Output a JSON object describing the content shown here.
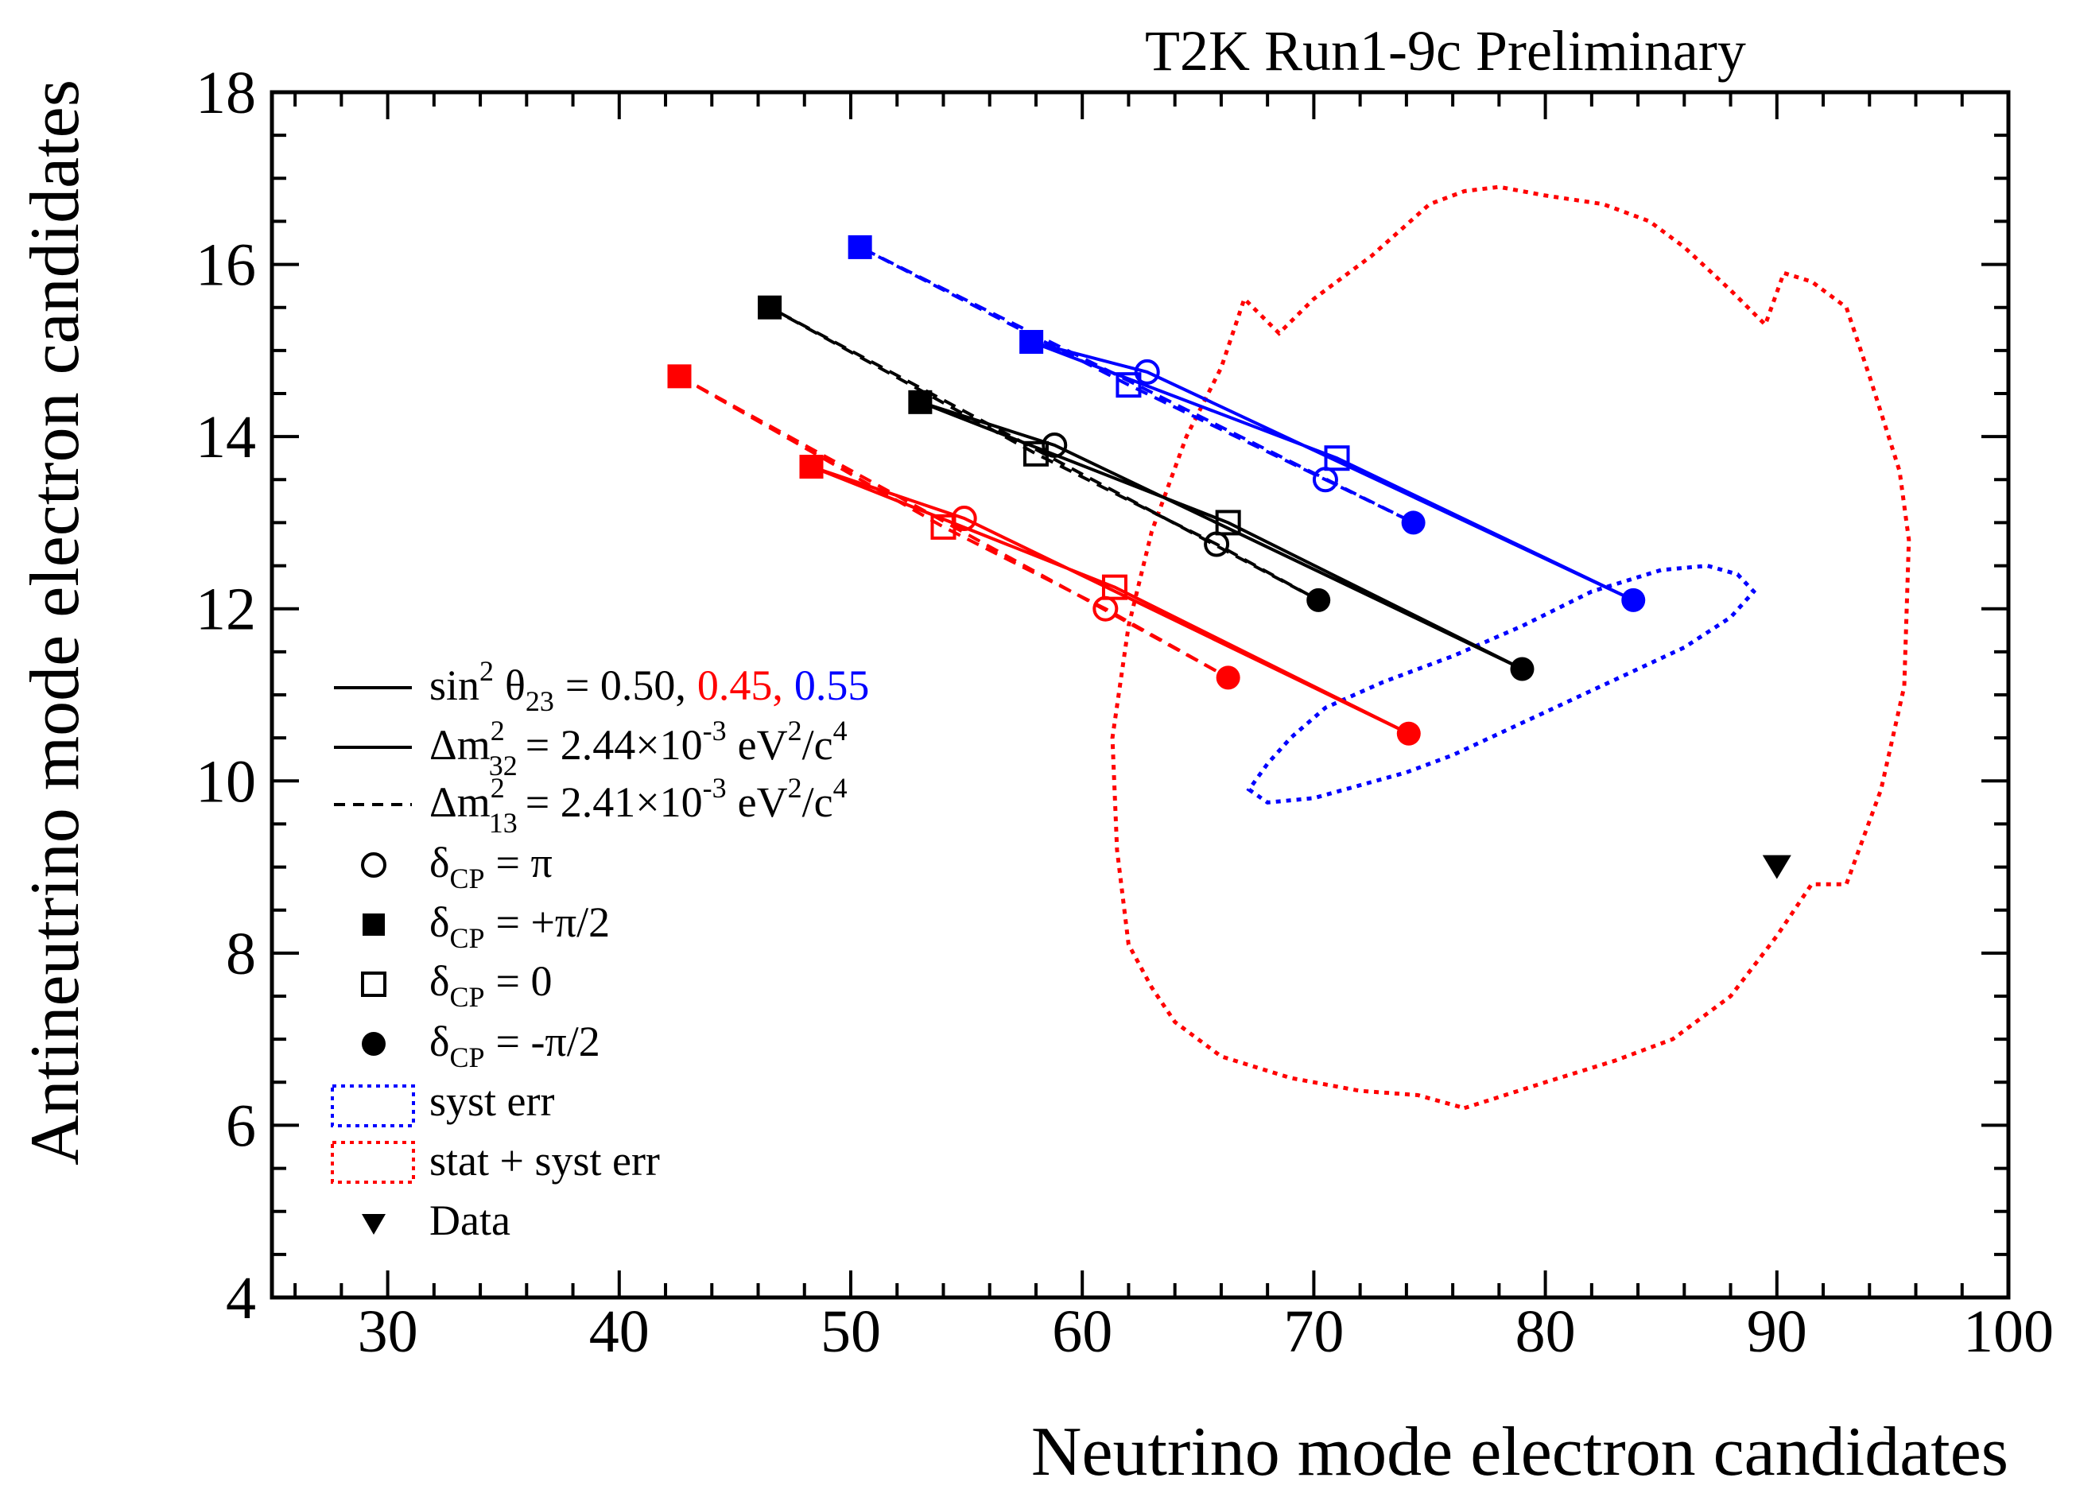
{
  "chart_data": {
    "type": "scatter",
    "header": "T2K Run1-9c Preliminary",
    "xlabel": "Neutrino mode electron candidates",
    "ylabel": "Antineutrino mode electron candidates",
    "xlim": [
      25,
      100
    ],
    "ylim": [
      4,
      18
    ],
    "xticks": [
      30,
      40,
      50,
      60,
      70,
      80,
      90,
      100
    ],
    "yticks": [
      4,
      6,
      8,
      10,
      12,
      14,
      16,
      18
    ],
    "colors": {
      "s050": "#000000",
      "s045": "#ff0000",
      "s055": "#0000ff",
      "syst": "#0000ff",
      "statsyst": "#ff0000",
      "data": "#000000"
    },
    "ellipses": [
      {
        "name": "syst err",
        "color": "#0000ff",
        "points": [
          [
            67.2,
            9.9
          ],
          [
            68,
            9.75
          ],
          [
            70,
            9.8
          ],
          [
            72,
            9.95
          ],
          [
            74,
            10.1
          ],
          [
            76,
            10.3
          ],
          [
            78,
            10.55
          ],
          [
            80,
            10.8
          ],
          [
            82,
            11.05
          ],
          [
            84,
            11.3
          ],
          [
            86,
            11.55
          ],
          [
            88,
            11.9
          ],
          [
            89,
            12.2
          ],
          [
            88.3,
            12.4
          ],
          [
            87,
            12.5
          ],
          [
            85,
            12.45
          ],
          [
            82,
            12.2
          ],
          [
            79,
            11.8
          ],
          [
            76,
            11.45
          ],
          [
            73,
            11.15
          ],
          [
            70.5,
            10.85
          ],
          [
            69,
            10.5
          ],
          [
            68,
            10.2
          ],
          [
            67.2,
            9.9
          ]
        ]
      },
      {
        "name": "stat + syst err",
        "color": "#ff0000",
        "points": [
          [
            76.5,
            6.2
          ],
          [
            80,
            6.5
          ],
          [
            83,
            6.75
          ],
          [
            85.5,
            7
          ],
          [
            88,
            7.5
          ],
          [
            90,
            8.2
          ],
          [
            91.5,
            8.8
          ],
          [
            93,
            8.8
          ],
          [
            94.5,
            9.9
          ],
          [
            95.5,
            11.1
          ],
          [
            95.7,
            12.8
          ],
          [
            95.3,
            13.6
          ],
          [
            94,
            14.7
          ],
          [
            93,
            15.5
          ],
          [
            91.5,
            15.8
          ],
          [
            90.3,
            15.9
          ],
          [
            89.5,
            15.3
          ],
          [
            88,
            15.7
          ],
          [
            86,
            16.2
          ],
          [
            84.5,
            16.5
          ],
          [
            82.5,
            16.7
          ],
          [
            80,
            16.8
          ],
          [
            78,
            16.9
          ],
          [
            76.5,
            16.85
          ],
          [
            75,
            16.7
          ],
          [
            72.5,
            16.1
          ],
          [
            70,
            15.6
          ],
          [
            68.5,
            15.2
          ],
          [
            67,
            15.6
          ],
          [
            66,
            14.8
          ],
          [
            64.5,
            14
          ],
          [
            63,
            12.9
          ],
          [
            62,
            11.8
          ],
          [
            61.3,
            10.5
          ],
          [
            61.5,
            9.2
          ],
          [
            62,
            8.1
          ],
          [
            63,
            7.6
          ],
          [
            64,
            7.2
          ],
          [
            66,
            6.8
          ],
          [
            69,
            6.55
          ],
          [
            72,
            6.4
          ],
          [
            74.5,
            6.35
          ],
          [
            76.5,
            6.2
          ]
        ]
      }
    ],
    "series": [
      {
        "name": "sin2 theta23 = 0.50, dm2_32 (normal)",
        "color": "#000000",
        "dash": false,
        "points": [
          [
            53,
            14.4
          ],
          [
            58.8,
            13.9
          ],
          [
            79,
            11.3
          ],
          [
            66.3,
            13.0
          ],
          [
            53,
            14.4
          ]
        ],
        "markers": [
          [
            53,
            14.4,
            "square-filled"
          ],
          [
            58.8,
            13.9,
            "circle-open"
          ],
          [
            66.3,
            13.0,
            "square-open"
          ],
          [
            79,
            11.3,
            "circle-filled"
          ]
        ]
      },
      {
        "name": "sin2 theta23 = 0.50, dm2_13 (inverted)",
        "color": "#000000",
        "dash": true,
        "points": [
          [
            46.5,
            15.5
          ],
          [
            58,
            13.8
          ],
          [
            65.8,
            12.75
          ],
          [
            70.2,
            12.1
          ],
          [
            46.5,
            15.5
          ]
        ],
        "markers": [
          [
            46.5,
            15.5,
            "square-filled"
          ],
          [
            58,
            13.8,
            "square-open"
          ],
          [
            65.8,
            12.75,
            "circle-open"
          ],
          [
            70.2,
            12.1,
            "circle-filled"
          ]
        ]
      },
      {
        "name": "sin2 theta23 = 0.45, dm2_32 (normal)",
        "color": "#ff0000",
        "dash": false,
        "points": [
          [
            48.3,
            13.65
          ],
          [
            54.9,
            13.05
          ],
          [
            74.1,
            10.55
          ],
          [
            61.4,
            12.25
          ],
          [
            48.3,
            13.65
          ]
        ],
        "markers": [
          [
            48.3,
            13.65,
            "square-filled"
          ],
          [
            54.9,
            13.05,
            "circle-open"
          ],
          [
            61.4,
            12.25,
            "square-open"
          ],
          [
            74.1,
            10.55,
            "circle-filled"
          ]
        ]
      },
      {
        "name": "sin2 theta23 = 0.45, dm2_13 (inverted)",
        "color": "#ff0000",
        "dash": true,
        "points": [
          [
            42.6,
            14.7
          ],
          [
            54,
            12.95
          ],
          [
            61,
            12.0
          ],
          [
            66.3,
            11.2
          ],
          [
            42.6,
            14.7
          ]
        ],
        "markers": [
          [
            42.6,
            14.7,
            "square-filled"
          ],
          [
            54,
            12.95,
            "square-open"
          ],
          [
            61,
            12.0,
            "circle-open"
          ],
          [
            66.3,
            11.2,
            "circle-filled"
          ]
        ]
      },
      {
        "name": "sin2 theta23 = 0.55, dm2_32 (normal)",
        "color": "#0000ff",
        "dash": false,
        "points": [
          [
            57.8,
            15.1
          ],
          [
            62.8,
            14.75
          ],
          [
            83.8,
            12.1
          ],
          [
            71,
            13.75
          ],
          [
            57.8,
            15.1
          ]
        ],
        "markers": [
          [
            57.8,
            15.1,
            "square-filled"
          ],
          [
            62.8,
            14.75,
            "circle-open"
          ],
          [
            71,
            13.75,
            "square-open"
          ],
          [
            83.8,
            12.1,
            "circle-filled"
          ]
        ]
      },
      {
        "name": "sin2 theta23 = 0.55, dm2_13 (inverted)",
        "color": "#0000ff",
        "dash": true,
        "points": [
          [
            50.4,
            16.2
          ],
          [
            62,
            14.6
          ],
          [
            70.5,
            13.5
          ],
          [
            74.3,
            13.0
          ],
          [
            50.4,
            16.2
          ]
        ],
        "markers": [
          [
            50.4,
            16.2,
            "square-filled"
          ],
          [
            62,
            14.6,
            "square-open"
          ],
          [
            70.5,
            13.5,
            "circle-open"
          ],
          [
            74.3,
            13.0,
            "circle-filled"
          ]
        ]
      }
    ],
    "data_point": {
      "x": 90,
      "y": 9.0,
      "label": "Data"
    },
    "legend": {
      "placement": "lower-left",
      "sin_prefix": "sin",
      "sin_sup": "2",
      "sin_theta": "θ",
      "sin_sub": "23",
      "sin_eq": "= 0.50,",
      "sin_red": "0.45,",
      "sin_blue": "0.55",
      "dm32_pre": "Δm",
      "dm32_sup": "2",
      "dm32_sub": "32",
      "dm32_eq": "= 2.44×10",
      "dm32_exp": "-3",
      "dm32_unit1": "eV",
      "dm32_unit_sup": "2",
      "dm32_unit2": "/c",
      "dm32_unit_sup2": "4",
      "dm13_pre": "Δm",
      "dm13_sup": "2",
      "dm13_sub": "13",
      "dm13_eq": "= 2.41×10",
      "dm13_exp": "-3",
      "dm13_unit1": "eV",
      "dm13_unit_sup": "2",
      "dm13_unit2": "/c",
      "dm13_unit_sup2": "4",
      "delta_sym": "δ",
      "delta_sub": "CP",
      "d_pi": "= π",
      "d_plus": "= +π/2",
      "d_zero": "= 0",
      "d_minus": "= -π/2",
      "syst": "syst err",
      "statsyst": "stat + syst err",
      "data": "Data"
    }
  }
}
